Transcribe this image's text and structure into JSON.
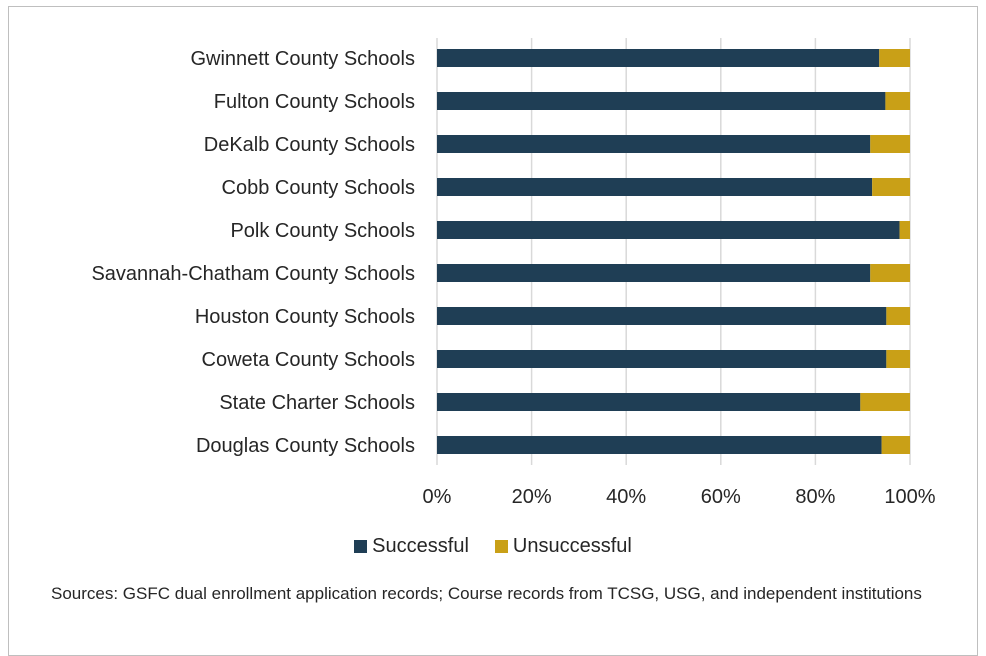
{
  "chart_data": {
    "type": "bar",
    "orientation": "horizontal",
    "stacked": true,
    "percent_stacked": true,
    "categories": [
      "Gwinnett County Schools",
      "Fulton County Schools",
      "DeKalb County Schools",
      "Cobb County Schools",
      "Polk County Schools",
      "Savannah-Chatham County Schools",
      "Houston County Schools",
      "Coweta County Schools",
      "State Charter Schools",
      "Douglas County Schools"
    ],
    "series": [
      {
        "name": "Successful",
        "values": [
          93.5,
          94.8,
          91.6,
          92.0,
          97.8,
          91.6,
          95.0,
          95.0,
          89.5,
          94.0
        ],
        "color": "#1f3e55"
      },
      {
        "name": "Unsuccessful",
        "values": [
          6.5,
          5.2,
          8.4,
          8.0,
          2.2,
          8.4,
          5.0,
          5.0,
          10.5,
          6.0
        ],
        "color": "#c9a017"
      }
    ],
    "x_ticks": [
      "0%",
      "20%",
      "40%",
      "60%",
      "80%",
      "100%"
    ],
    "xlim": [
      0,
      100
    ],
    "grid": true,
    "legend_position": "bottom",
    "title": "",
    "xlabel": "",
    "ylabel": ""
  },
  "source_note": "Sources: GSFC dual enrollment application records; Course records from TCSG, USG, and independent institutions"
}
